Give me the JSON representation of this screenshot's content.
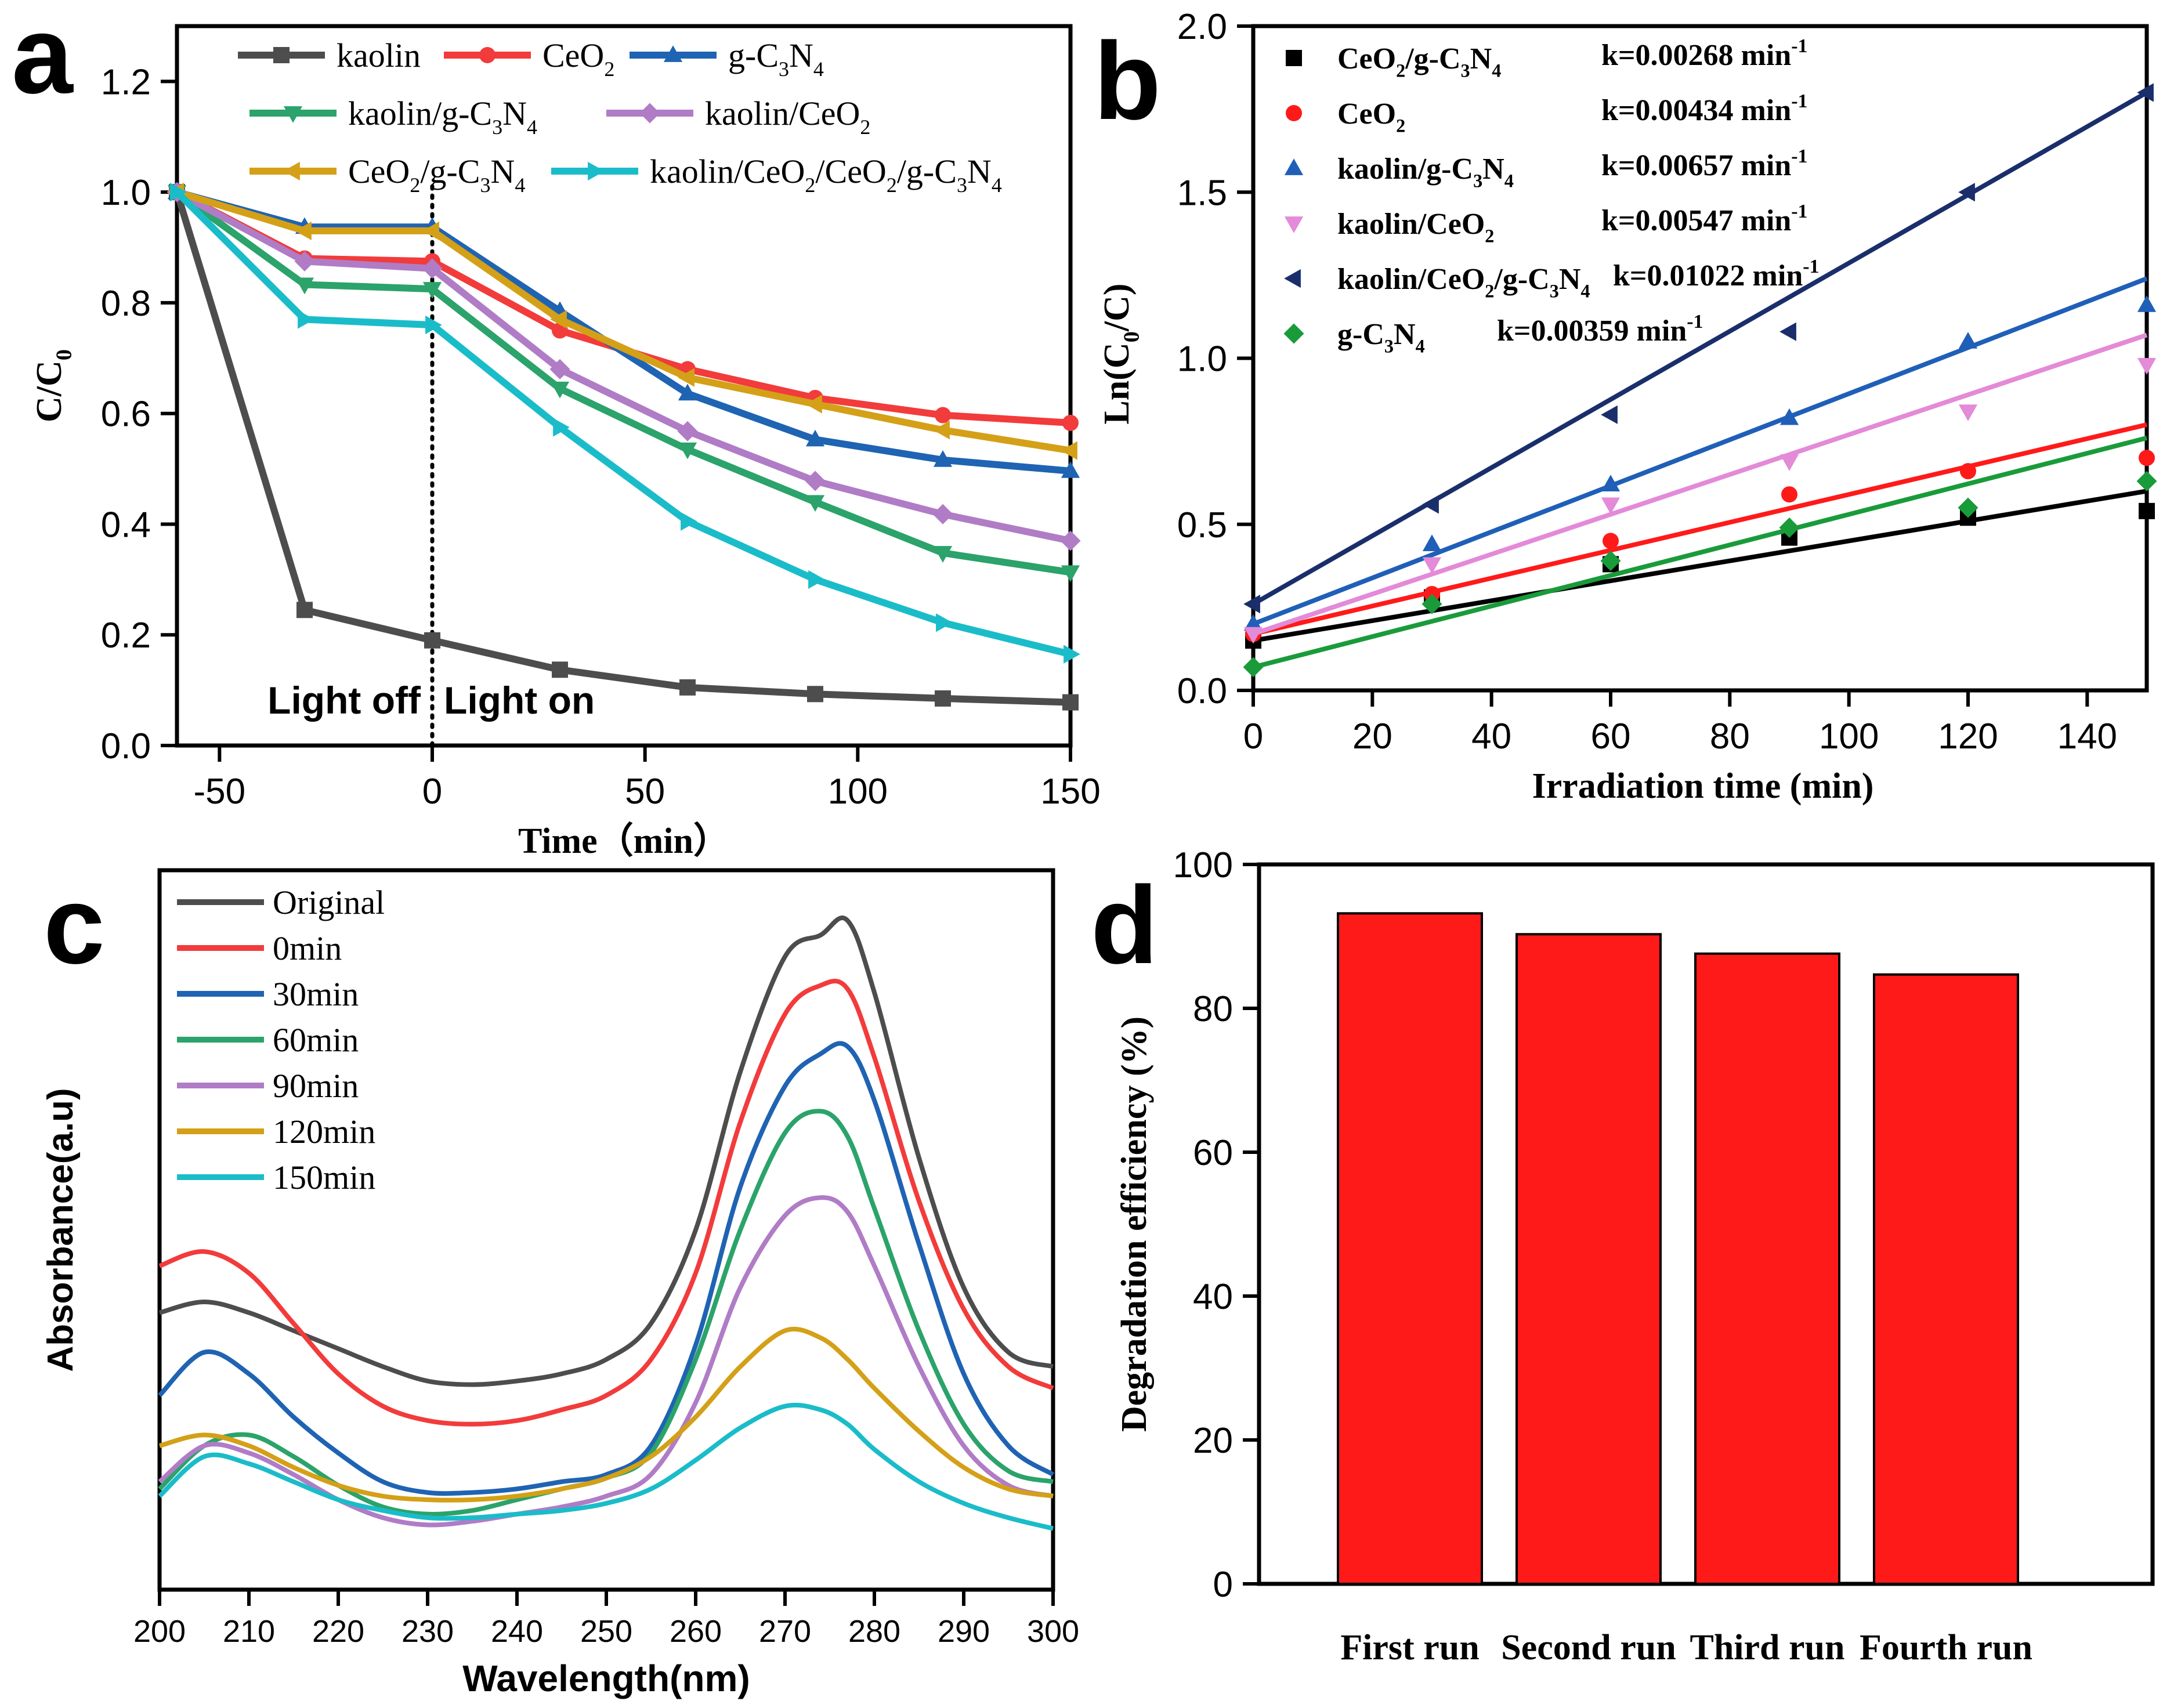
{
  "chart_data": [
    {
      "id": "a",
      "type": "line",
      "panel_letter": "a",
      "xlabel": "Time（min）",
      "ylabel": "C/C0",
      "xlim": [
        -60,
        150
      ],
      "ylim": [
        0.0,
        1.3
      ],
      "xticks": [
        -50,
        0,
        50,
        100,
        150
      ],
      "yticks": [
        0.0,
        0.2,
        0.4,
        0.6,
        0.8,
        1.0,
        1.2
      ],
      "x": [
        -60,
        -30,
        0,
        30,
        60,
        90,
        120,
        150
      ],
      "annotations": {
        "light_off": "Light off",
        "light_on": "Light on",
        "divider_x": 0
      },
      "series": [
        {
          "name": "kaolin",
          "color": "#4d4d4d",
          "marker": "square",
          "values": [
            1.0,
            0.245,
            0.19,
            0.137,
            0.105,
            0.093,
            0.085,
            0.078
          ]
        },
        {
          "name": "CeO2",
          "color": "#f23b3b",
          "marker": "circle",
          "values": [
            1.0,
            0.88,
            0.875,
            0.75,
            0.68,
            0.628,
            0.597,
            0.583
          ]
        },
        {
          "name": "g-C3N4",
          "color": "#1f63b3",
          "marker": "triangle-up",
          "values": [
            1.0,
            0.937,
            0.937,
            0.785,
            0.636,
            0.553,
            0.516,
            0.496
          ]
        },
        {
          "name": "kaolin/g-C3N4",
          "color": "#2ba36a",
          "marker": "triangle-down",
          "values": [
            1.0,
            0.833,
            0.825,
            0.645,
            0.535,
            0.44,
            0.348,
            0.313
          ]
        },
        {
          "name": "kaolin/CeO2",
          "color": "#b07cc6",
          "marker": "diamond",
          "values": [
            1.0,
            0.875,
            0.862,
            0.68,
            0.568,
            0.478,
            0.418,
            0.37
          ]
        },
        {
          "name": "CeO2/g-C3N4",
          "color": "#d4a017",
          "marker": "triangle-left",
          "values": [
            1.0,
            0.93,
            0.93,
            0.77,
            0.665,
            0.617,
            0.57,
            0.533
          ]
        },
        {
          "name": "kaolin/CeO2/CeO2/g-C3N4",
          "color": "#1bbcc9",
          "marker": "triangle-right",
          "values": [
            1.0,
            0.77,
            0.76,
            0.575,
            0.405,
            0.3,
            0.222,
            0.165
          ]
        }
      ],
      "legend_rows": [
        [
          {
            "series": 0,
            "text": "kaolin"
          },
          {
            "series": 1,
            "text": "CeO",
            "sub": "2"
          },
          {
            "series": 2,
            "text": "g-C",
            "sub": "3",
            "text2": "N",
            "sub2": "4"
          }
        ],
        [
          {
            "series": 3,
            "text": "kaolin/g-C",
            "sub": "3",
            "text2": "N",
            "sub2": "4"
          },
          {
            "series": 4,
            "text": "kaolin/CeO",
            "sub": "2"
          }
        ],
        [
          {
            "series": 5,
            "text": "CeO",
            "sub": "2",
            "text2": "/g-C",
            "sub2": "3",
            "text3": "N",
            "sub3": "4"
          },
          {
            "series": 6,
            "text": "kaolin/CeO",
            "sub": "2",
            "text2": "/CeO",
            "sub2": "2",
            "text3": "/g-C",
            "sub3": "3",
            "text4": "N",
            "sub4": "4"
          }
        ]
      ]
    },
    {
      "id": "b",
      "type": "scatter",
      "panel_letter": "b",
      "xlabel": "Irradiation time (min)",
      "ylabel": "Ln(C0/C)",
      "xlim": [
        0,
        150
      ],
      "ylim": [
        0.0,
        2.0
      ],
      "xticks": [
        0,
        20,
        40,
        60,
        80,
        100,
        120,
        140
      ],
      "yticks": [
        0.0,
        0.5,
        1.0,
        1.5,
        2.0
      ],
      "x": [
        0,
        30,
        60,
        90,
        120,
        150
      ],
      "series": [
        {
          "name": "CeO2/g-C3N4",
          "k_label": "k=0.00268 min",
          "k_exp": "-1",
          "color": "#000000",
          "marker": "square",
          "values": [
            0.15,
            0.28,
            0.38,
            0.46,
            0.52,
            0.54
          ],
          "fit": [
            0.15,
            0.6
          ]
        },
        {
          "name": "CeO2",
          "k_label": "k=0.00434 min",
          "k_exp": "-1",
          "color": "#ff1a1a",
          "marker": "circle",
          "values": [
            0.17,
            0.29,
            0.45,
            0.59,
            0.66,
            0.7
          ],
          "fit": [
            0.17,
            0.8
          ]
        },
        {
          "name": "kaolin/g-C3N4",
          "k_label": "k=0.00657 min",
          "k_exp": "-1",
          "color": "#1f5fb8",
          "marker": "triangle-up",
          "values": [
            0.2,
            0.44,
            0.62,
            0.82,
            1.05,
            1.16
          ],
          "fit": [
            0.2,
            1.24
          ]
        },
        {
          "name": "kaolin/CeO2",
          "k_label": "k=0.00547 min",
          "k_exp": "-1",
          "color": "#e38ad8",
          "marker": "triangle-down",
          "values": [
            0.17,
            0.38,
            0.56,
            0.69,
            0.84,
            0.98
          ],
          "fit": [
            0.17,
            1.07
          ]
        },
        {
          "name": "kaolin/CeO2/g-C3N4",
          "k_label": "k=0.01022 min",
          "k_exp": "-1",
          "color": "#1a2e6b",
          "marker": "triangle-left",
          "values": [
            0.26,
            0.56,
            0.83,
            1.08,
            1.5,
            1.8
          ],
          "fit": [
            0.26,
            1.8
          ]
        },
        {
          "name": "g-C3N4",
          "k_label": "k=0.00359 min",
          "k_exp": "-1",
          "color": "#1a9b3a",
          "marker": "diamond",
          "values": [
            0.07,
            0.26,
            0.39,
            0.49,
            0.55,
            0.63
          ],
          "fit": [
            0.07,
            0.76
          ]
        }
      ],
      "legend_rows": [
        {
          "series": 0,
          "text": "CeO",
          "sub": "2",
          "text2": "/g-C",
          "sub2": "3",
          "text3": "N",
          "sub3": "4"
        },
        {
          "series": 1,
          "text": "CeO",
          "sub": "2"
        },
        {
          "series": 2,
          "text": "kaolin/g-C",
          "sub": "3",
          "text2": "N",
          "sub2": "4"
        },
        {
          "series": 3,
          "text": "kaolin/CeO",
          "sub": "2"
        },
        {
          "series": 4,
          "text": "kaolin/CeO",
          "sub": "2",
          "text2": "/g-C",
          "sub2": "3",
          "text3": "N",
          "sub3": "4"
        },
        {
          "series": 5,
          "text": "g-C",
          "sub": "3",
          "text2": "N",
          "sub2": "4"
        }
      ]
    },
    {
      "id": "c",
      "type": "line",
      "panel_letter": "c",
      "xlabel": "Wavelength(nm)",
      "ylabel": "Absorbance(a.u)",
      "xlim": [
        200,
        300
      ],
      "ylim": [
        0,
        1
      ],
      "xticks": [
        200,
        210,
        220,
        230,
        240,
        250,
        260,
        270,
        280,
        290,
        300
      ],
      "x": [
        200,
        205,
        210,
        215,
        220,
        225,
        230,
        235,
        240,
        245,
        250,
        255,
        260,
        265,
        270,
        274,
        277,
        280,
        285,
        290,
        295,
        300
      ],
      "series": [
        {
          "name": "Original",
          "color": "#4d4d4d",
          "values": [
            0.385,
            0.4,
            0.385,
            0.36,
            0.335,
            0.31,
            0.29,
            0.285,
            0.29,
            0.3,
            0.32,
            0.37,
            0.5,
            0.72,
            0.88,
            0.91,
            0.93,
            0.83,
            0.6,
            0.42,
            0.33,
            0.31
          ]
        },
        {
          "name": "0min",
          "color": "#f23b3b",
          "values": [
            0.45,
            0.47,
            0.44,
            0.37,
            0.3,
            0.255,
            0.235,
            0.23,
            0.235,
            0.25,
            0.27,
            0.32,
            0.44,
            0.65,
            0.8,
            0.84,
            0.835,
            0.74,
            0.54,
            0.39,
            0.31,
            0.28
          ]
        },
        {
          "name": "30min",
          "color": "#1f63b3",
          "values": [
            0.27,
            0.33,
            0.3,
            0.24,
            0.19,
            0.15,
            0.135,
            0.135,
            0.14,
            0.15,
            0.16,
            0.2,
            0.34,
            0.56,
            0.7,
            0.745,
            0.755,
            0.68,
            0.48,
            0.3,
            0.2,
            0.16
          ]
        },
        {
          "name": "60min",
          "color": "#2ba36a",
          "values": [
            0.14,
            0.2,
            0.215,
            0.185,
            0.145,
            0.115,
            0.105,
            0.11,
            0.125,
            0.14,
            0.155,
            0.19,
            0.32,
            0.5,
            0.635,
            0.665,
            0.63,
            0.53,
            0.36,
            0.23,
            0.165,
            0.15
          ]
        },
        {
          "name": "90min",
          "color": "#b07cc6",
          "values": [
            0.15,
            0.2,
            0.19,
            0.16,
            0.125,
            0.1,
            0.09,
            0.095,
            0.105,
            0.115,
            0.13,
            0.16,
            0.26,
            0.42,
            0.52,
            0.545,
            0.525,
            0.45,
            0.31,
            0.2,
            0.145,
            0.13
          ]
        },
        {
          "name": "120min",
          "color": "#d4a017",
          "values": [
            0.2,
            0.215,
            0.2,
            0.17,
            0.145,
            0.13,
            0.125,
            0.125,
            0.13,
            0.14,
            0.155,
            0.185,
            0.24,
            0.31,
            0.36,
            0.35,
            0.32,
            0.28,
            0.22,
            0.17,
            0.14,
            0.13
          ]
        },
        {
          "name": "150min",
          "color": "#1bbcc9",
          "values": [
            0.13,
            0.185,
            0.175,
            0.15,
            0.125,
            0.11,
            0.1,
            0.1,
            0.105,
            0.11,
            0.12,
            0.14,
            0.18,
            0.225,
            0.255,
            0.25,
            0.23,
            0.195,
            0.15,
            0.12,
            0.1,
            0.085
          ]
        }
      ]
    },
    {
      "id": "d",
      "type": "bar",
      "panel_letter": "d",
      "xlabel": "",
      "ylabel": "Degradation efficiency (%)",
      "ylim": [
        0,
        100
      ],
      "yticks": [
        0,
        20,
        40,
        60,
        80,
        100
      ],
      "categories": [
        "First run",
        "Second run",
        "Third run",
        "Fourth run"
      ],
      "values": [
        93.2,
        90.3,
        87.6,
        84.7
      ],
      "bar_color": "#ff1a1a"
    }
  ]
}
